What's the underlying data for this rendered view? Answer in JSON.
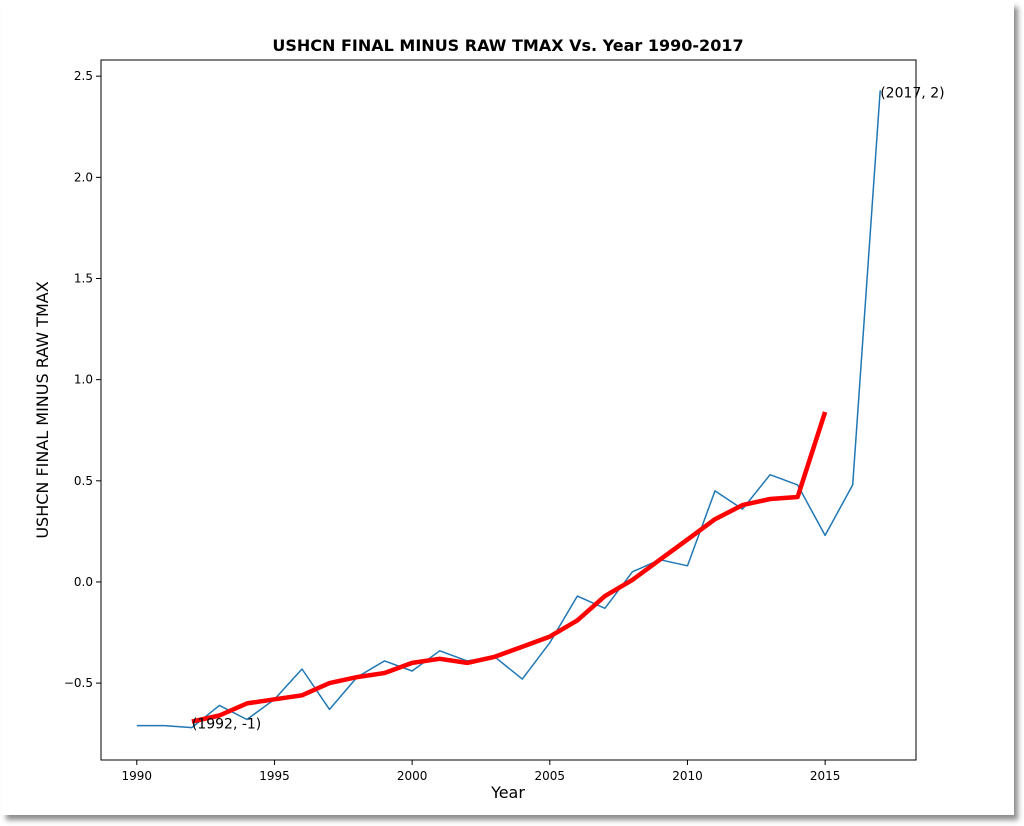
{
  "chart_data": {
    "type": "line",
    "title": "USHCN FINAL MINUS RAW TMAX Vs. Year 1990-2017",
    "xlabel": "Year",
    "ylabel": "USHCN FINAL MINUS RAW TMAX",
    "xlim": [
      1988.7,
      2018.3
    ],
    "ylim": [
      -0.88,
      2.58
    ],
    "xticks": [
      1990,
      1995,
      2000,
      2005,
      2010,
      2015
    ],
    "yticks": [
      -0.5,
      0.0,
      0.5,
      1.0,
      1.5,
      2.0,
      2.5
    ],
    "ytick_labels": [
      "−0.5",
      "0.0",
      "0.5",
      "1.0",
      "1.5",
      "2.0",
      "2.5"
    ],
    "grid": false,
    "series": [
      {
        "color": "#1f77b4",
        "x": [
          1990,
          1991,
          1992,
          1993,
          1994,
          1995,
          1996,
          1997,
          1998,
          1999,
          2000,
          2001,
          2002,
          2003,
          2004,
          2005,
          2006,
          2007,
          2008,
          2009,
          2010,
          2011,
          2012,
          2013,
          2014,
          2015,
          2016,
          2017
        ],
        "values": [
          -0.71,
          -0.71,
          -0.72,
          -0.61,
          -0.68,
          -0.58,
          -0.43,
          -0.63,
          -0.47,
          -0.39,
          -0.44,
          -0.34,
          -0.39,
          -0.37,
          -0.48,
          -0.3,
          -0.07,
          -0.13,
          0.05,
          0.11,
          0.08,
          0.45,
          0.36,
          0.53,
          0.48,
          0.23,
          0.48,
          2.43
        ]
      },
      {
        "color": "#ff0000",
        "x": [
          1992,
          1993,
          1994,
          1995,
          1996,
          1997,
          1998,
          1999,
          2000,
          2001,
          2002,
          2003,
          2004,
          2005,
          2006,
          2007,
          2008,
          2009,
          2010,
          2011,
          2012,
          2013,
          2014,
          2015
        ],
        "values": [
          -0.69,
          -0.66,
          -0.6,
          -0.58,
          -0.56,
          -0.5,
          -0.47,
          -0.45,
          -0.4,
          -0.38,
          -0.4,
          -0.37,
          -0.32,
          -0.27,
          -0.19,
          -0.07,
          0.01,
          0.11,
          0.21,
          0.31,
          0.38,
          0.41,
          0.42,
          0.84
        ]
      }
    ],
    "annotations": [
      {
        "text": "(1992, -1)",
        "x": 1992,
        "y": -0.69
      },
      {
        "text": "(2017, 2)",
        "x": 2017,
        "y": 2.43
      }
    ]
  }
}
